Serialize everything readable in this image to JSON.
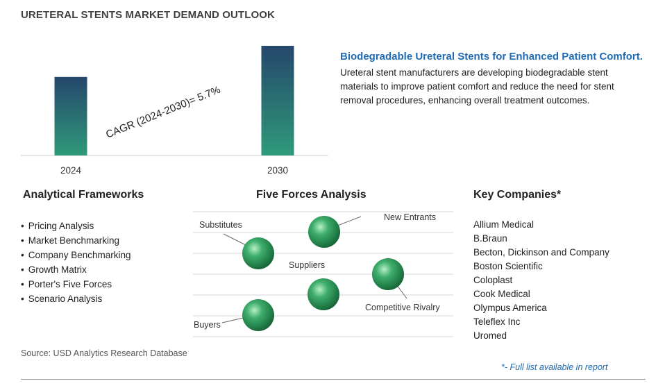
{
  "title": "URETERAL STENTS MARKET DEMAND OUTLOOK",
  "chart_data": {
    "type": "bar",
    "categories": [
      "2024",
      "2030"
    ],
    "values": [
      1,
      1.396
    ],
    "annotation": "CAGR (2024-2030)=  5.7%"
  },
  "highlight": {
    "headline": "Biodegradable Ureteral Stents for Enhanced Patient Comfort.",
    "description": "Ureteral stent manufacturers are developing biodegradable stent materials to improve patient comfort and reduce the need for stent removal procedures, enhancing overall treatment outcomes."
  },
  "frameworks": {
    "title": "Analytical Frameworks",
    "items": [
      "Pricing Analysis",
      "Market Benchmarking",
      "Company Benchmarking",
      "Growth Matrix",
      "Porter's Five Forces",
      "Scenario Analysis"
    ]
  },
  "five_forces": {
    "title": "Five Forces Analysis",
    "labels": {
      "new_entrants": "New Entrants",
      "substitutes": "Substitutes",
      "suppliers": "Suppliers",
      "competitive_rivalry": "Competitive Rivalry",
      "buyers": "Buyers"
    }
  },
  "companies": {
    "title": "Key Companies*",
    "items": [
      "Allium Medical",
      "B.Braun",
      "Becton, Dickinson and Company",
      "Boston Scientific",
      "Coloplast",
      "Cook Medical",
      "Olympus America",
      "Teleflex Inc",
      "Uromed"
    ]
  },
  "source": "Source: USD Analytics Research Database",
  "footnote": "*- Full list available in report",
  "colors": {
    "bar_top": "#25476b",
    "bar_bottom": "#2f9a7a",
    "accent": "#1f6bb5",
    "sphere": "#2e9a5e"
  }
}
